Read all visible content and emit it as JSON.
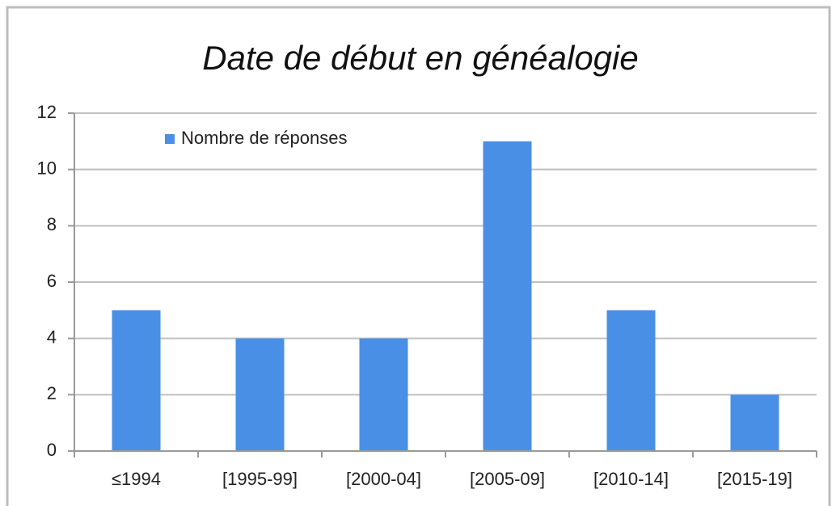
{
  "chart_data": {
    "type": "bar",
    "title": "Date de début en généalogie",
    "categories": [
      "≤1994",
      "[1995-99]",
      "[2000-04]",
      "[2005-09]",
      "[2010-14]",
      "[2015-19]"
    ],
    "series": [
      {
        "name": "Nombre de réponses",
        "color": "#4a8fe6",
        "values": [
          5,
          4,
          4,
          11,
          5,
          2
        ]
      }
    ],
    "ylim": [
      0,
      12
    ],
    "yticks": [
      0,
      2,
      4,
      6,
      8,
      10,
      12
    ],
    "grid": true,
    "legend": "top-left"
  }
}
